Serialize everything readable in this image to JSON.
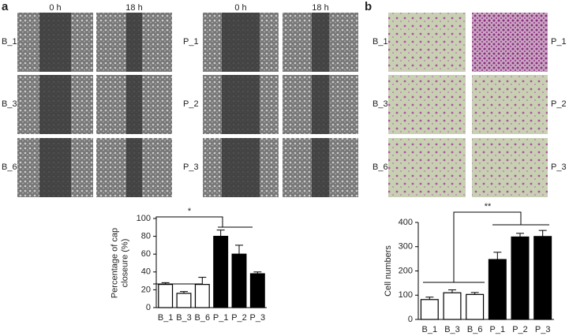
{
  "panel_a": {
    "label": "a",
    "groups": [
      {
        "columns": [
          "0 h",
          "18 h"
        ],
        "rows": [
          "B_1",
          "B_3",
          "B_6"
        ]
      },
      {
        "columns": [
          "0 h",
          "18 h"
        ],
        "rows": [
          "P_1",
          "P_2",
          "P_3"
        ]
      }
    ]
  },
  "panel_b": {
    "label": "b",
    "left_rows": [
      "B_1",
      "B_3",
      "B_6"
    ],
    "right_rows": [
      "P_1",
      "P_2",
      "P_3"
    ]
  },
  "chart_data": [
    {
      "type": "bar",
      "ylabel": [
        "Percentage of cap",
        "closeure (%)"
      ],
      "categories": [
        "B_1",
        "B_3",
        "B_6",
        "P_1",
        "P_2",
        "P_3"
      ],
      "values": [
        26,
        16,
        26,
        80,
        60,
        38
      ],
      "errors": [
        2,
        2,
        8,
        7,
        10,
        2
      ],
      "colors": [
        "#ffffff",
        "#ffffff",
        "#ffffff",
        "#000000",
        "#000000",
        "#000000"
      ],
      "ylim": [
        0,
        100
      ],
      "yticks": [
        0,
        20,
        40,
        60,
        80,
        100
      ],
      "annotation": "*"
    },
    {
      "type": "bar",
      "ylabel": [
        "Cell numbers"
      ],
      "categories": [
        "B_1",
        "B_3",
        "B_6",
        "P_1",
        "P_2",
        "P_3"
      ],
      "values": [
        82,
        110,
        103,
        247,
        340,
        342
      ],
      "errors": [
        10,
        12,
        8,
        30,
        15,
        25
      ],
      "colors": [
        "#ffffff",
        "#ffffff",
        "#ffffff",
        "#000000",
        "#000000",
        "#000000"
      ],
      "ylim": [
        0,
        400
      ],
      "yticks": [
        0,
        100,
        200,
        300,
        400
      ],
      "annotation": "**"
    }
  ]
}
